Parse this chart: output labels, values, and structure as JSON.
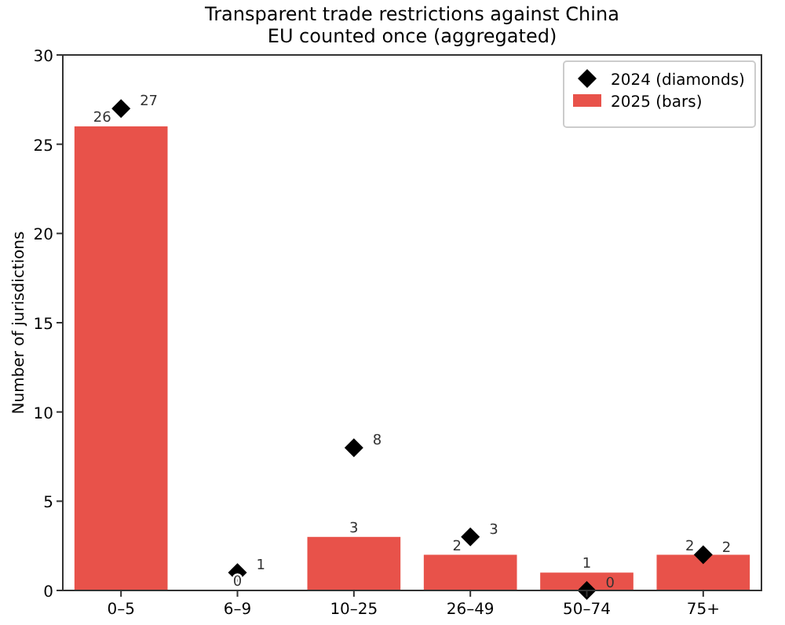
{
  "chart_data": {
    "type": "bar",
    "title": "Transparent trade restrictions against China",
    "subtitle": "EU counted once (aggregated)",
    "ylabel": "Number of jurisdictions",
    "categories": [
      "0–5",
      "6–9",
      "10–25",
      "26–49",
      "50–74",
      "75+"
    ],
    "series": [
      {
        "name": "2024 (diamonds)",
        "type": "scatter",
        "marker": "diamond",
        "color": "#000000",
        "values": [
          27,
          1,
          8,
          3,
          0,
          2
        ]
      },
      {
        "name": "2025 (bars)",
        "type": "bar",
        "color": "#e8524a",
        "values": [
          26,
          0,
          3,
          2,
          1,
          2
        ]
      }
    ],
    "ylim": [
      0,
      30
    ],
    "yticks": [
      0,
      5,
      10,
      15,
      20,
      25,
      30
    ],
    "legend": "top right",
    "data_labels": true
  }
}
